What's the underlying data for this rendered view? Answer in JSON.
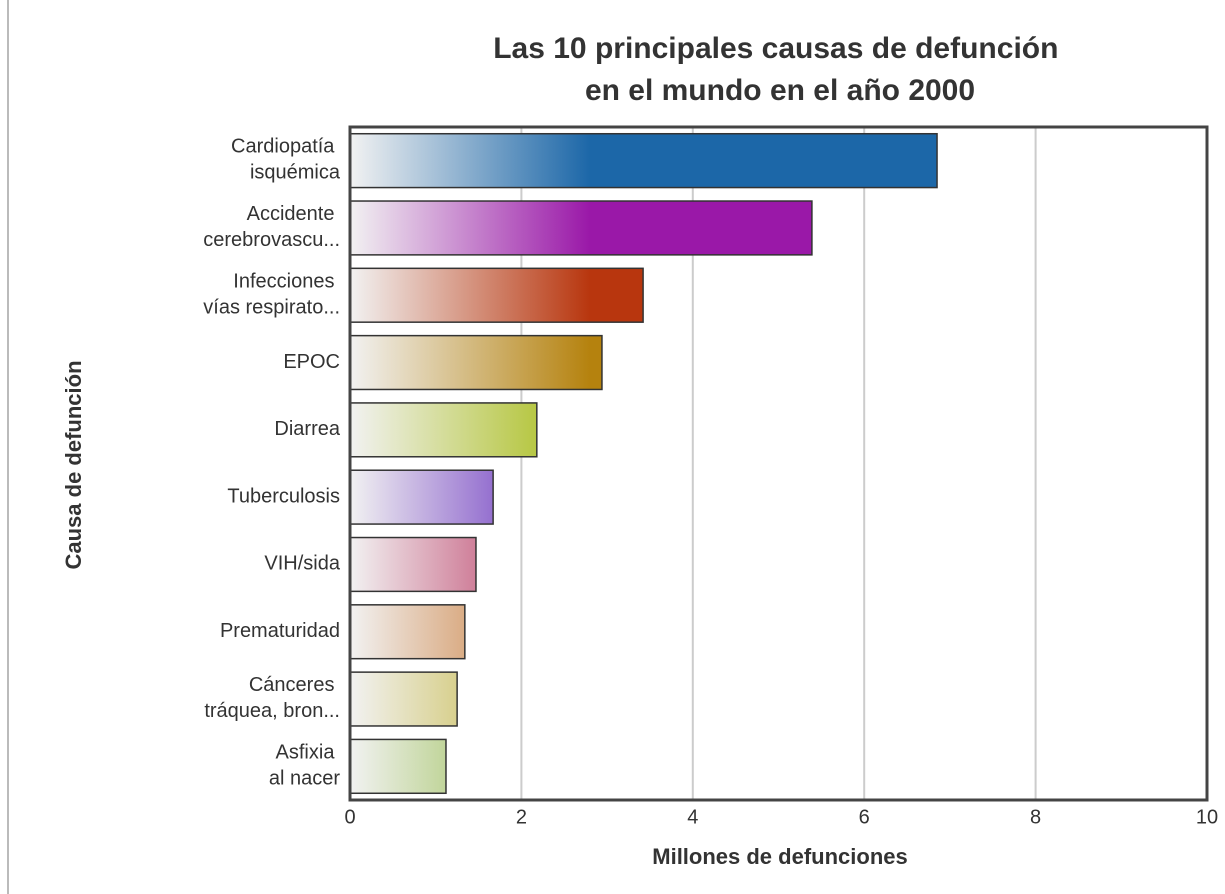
{
  "chart_data": {
    "type": "bar",
    "orientation": "horizontal",
    "title": "Las 10 principales causas de defunción en el mundo en el año 2000",
    "x_label": "Millones de defunciones",
    "y_label": "Causa de defunción",
    "categories": [
      "Cardiopatía isquémica",
      "Accidente cerebrovascu...",
      "Infecciones vías respirato...",
      "EPOC",
      "Diarrea",
      "Tuberculosis",
      "VIH/sida",
      "Prematuridad",
      "Cánceres tráquea, bron...",
      "Asfixia al nacer"
    ],
    "values": [
      6.85,
      5.39,
      3.42,
      2.94,
      2.18,
      1.67,
      1.47,
      1.34,
      1.25,
      1.12
    ],
    "colors": [
      "#1c67a8",
      "#9a18a8",
      "#b8360e",
      "#b5820e",
      "#a6bb12",
      "#5618b8",
      "#b0184a",
      "#c0600e",
      "#b8a612",
      "#78aa18"
    ],
    "xlim": [
      0,
      10
    ],
    "xticks": [
      0,
      2,
      4,
      6,
      8,
      10
    ],
    "grid": true
  }
}
